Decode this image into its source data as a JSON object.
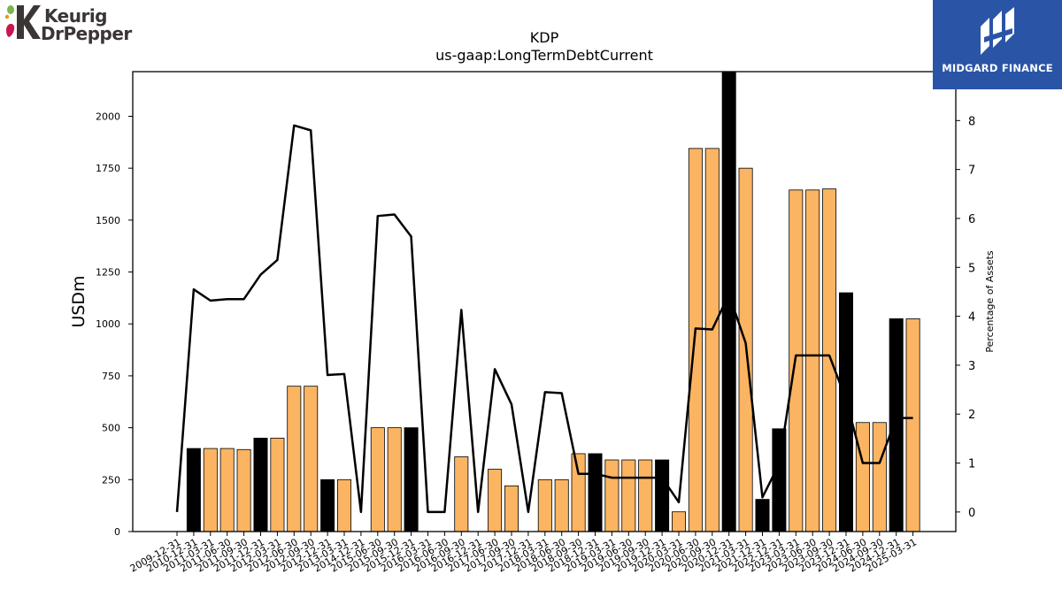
{
  "logos": {
    "left_line1": "Keurig",
    "left_line2": "DrPepper",
    "right_name": "MIDGARD FINANCE"
  },
  "colors": {
    "bar_primary": "#fbb462",
    "bar_highlight": "#000000",
    "line": "#000000",
    "banner": "#2a55a6"
  },
  "chart_data": {
    "type": "bar",
    "title": "KDP",
    "subtitle": "us-gaap:LongTermDebtCurrent",
    "ylabel": "USDm",
    "y2label": "Percentage of Assets",
    "ylim": [
      0,
      2215
    ],
    "y2lim": [
      -0.4,
      9.0
    ],
    "yticks": [
      0,
      250,
      500,
      750,
      1000,
      1250,
      1500,
      1750,
      2000
    ],
    "y2ticks": [
      0,
      1,
      2,
      3,
      4,
      5,
      6,
      7,
      8
    ],
    "categories": [
      "2009-12-31",
      "2010-12-31",
      "2011-03-31",
      "2011-06-30",
      "2011-09-30",
      "2011-12-31",
      "2012-03-31",
      "2012-06-30",
      "2012-09-30",
      "2012-12-31",
      "2013-03-31",
      "2014-12-31",
      "2015-06-30",
      "2015-09-30",
      "2015-12-31",
      "2016-03-31",
      "2016-06-30",
      "2016-09-30",
      "2016-12-31",
      "2017-06-30",
      "2017-09-30",
      "2017-12-31",
      "2018-03-31",
      "2018-06-30",
      "2018-09-30",
      "2018-12-31",
      "2019-03-31",
      "2019-06-30",
      "2019-09-30",
      "2019-12-31",
      "2020-03-31",
      "2020-06-30",
      "2020-09-30",
      "2020-12-31",
      "2021-03-31",
      "2021-12-31",
      "2022-12-31",
      "2023-03-31",
      "2023-06-30",
      "2023-09-30",
      "2023-12-31",
      "2024-06-30",
      "2024-09-30",
      "2024-12-31",
      "2025-03-31"
    ],
    "series": [
      {
        "kind": "bar",
        "values": [
          0,
          400,
          400,
          400,
          395,
          450,
          450,
          700,
          700,
          250,
          250,
          0,
          500,
          500,
          500,
          0,
          0,
          360,
          0,
          300,
          220,
          0,
          250,
          250,
          375,
          375,
          345,
          345,
          345,
          345,
          95,
          1845,
          1845,
          2215,
          1750,
          155,
          495,
          1645,
          1645,
          1650,
          1150,
          525,
          525,
          1025,
          1025
        ],
        "highlight": [
          false,
          true,
          false,
          false,
          false,
          true,
          false,
          false,
          false,
          true,
          false,
          false,
          false,
          false,
          true,
          false,
          false,
          false,
          false,
          false,
          false,
          false,
          false,
          false,
          false,
          true,
          false,
          false,
          false,
          true,
          false,
          false,
          false,
          true,
          false,
          true,
          true,
          false,
          false,
          false,
          true,
          false,
          false,
          true,
          false
        ]
      },
      {
        "kind": "line",
        "axis": "right",
        "values": [
          0,
          4.55,
          4.32,
          4.35,
          4.35,
          4.85,
          5.15,
          7.9,
          7.8,
          2.8,
          2.82,
          0,
          6.05,
          6.08,
          5.63,
          0,
          0,
          4.13,
          0,
          2.92,
          2.2,
          0,
          2.45,
          2.43,
          0.78,
          0.78,
          0.7,
          0.7,
          0.7,
          0.7,
          0.2,
          3.75,
          3.73,
          4.45,
          3.45,
          0.3,
          0.98,
          3.2,
          3.2,
          3.2,
          2.3,
          1.0,
          1.0,
          1.92,
          1.92
        ]
      }
    ],
    "legend": "none",
    "grid": false
  }
}
